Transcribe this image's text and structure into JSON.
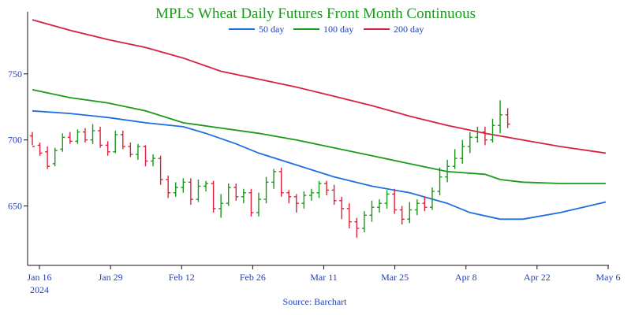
{
  "chart_data": {
    "type": "line",
    "title": "MPLS Wheat Daily Futures Front Month Continuous",
    "source": "Source: Barchart",
    "x_ticks": [
      "Jan 16",
      "Jan 29",
      "Feb 12",
      "Feb 26",
      "Mar 11",
      "Mar 25",
      "Apr 8",
      "Apr 22",
      "May 6"
    ],
    "x_year": "2024",
    "y_ticks": [
      "650",
      "700",
      "750"
    ],
    "ylim": [
      605,
      797
    ],
    "legend_position": "top",
    "grid": false,
    "colors": {
      "up": "#1a9a1a",
      "down": "#e0203a",
      "ma50": "#1c6fe0",
      "ma100": "#1a9a1a",
      "ma200": "#d62040",
      "axis": "#111111",
      "text": "#1f3fbf",
      "title": "#1a9a1a"
    },
    "ma_series": [
      {
        "name": "50 day",
        "color": "#1c6fe0",
        "points": [
          [
            0,
            722
          ],
          [
            5,
            720
          ],
          [
            10,
            717
          ],
          [
            15,
            713
          ],
          [
            20,
            710
          ],
          [
            23,
            705
          ],
          [
            27,
            697
          ],
          [
            30,
            690
          ],
          [
            35,
            681
          ],
          [
            40,
            672
          ],
          [
            45,
            665
          ],
          [
            50,
            660
          ],
          [
            55,
            652
          ],
          [
            58,
            645
          ],
          [
            62,
            640
          ],
          [
            65,
            640
          ],
          [
            70,
            645
          ],
          [
            76,
            653
          ]
        ]
      },
      {
        "name": "100 day",
        "color": "#1a9a1a",
        "points": [
          [
            0,
            738
          ],
          [
            5,
            732
          ],
          [
            10,
            728
          ],
          [
            15,
            722
          ],
          [
            20,
            713
          ],
          [
            25,
            709
          ],
          [
            30,
            705
          ],
          [
            35,
            700
          ],
          [
            40,
            694
          ],
          [
            45,
            688
          ],
          [
            50,
            682
          ],
          [
            55,
            676
          ],
          [
            60,
            674
          ],
          [
            62,
            670
          ],
          [
            65,
            668
          ],
          [
            70,
            667
          ],
          [
            76,
            667
          ]
        ]
      },
      {
        "name": "200 day",
        "color": "#d62040",
        "points": [
          [
            0,
            791
          ],
          [
            5,
            783
          ],
          [
            10,
            776
          ],
          [
            15,
            770
          ],
          [
            20,
            762
          ],
          [
            25,
            752
          ],
          [
            30,
            746
          ],
          [
            35,
            740
          ],
          [
            40,
            733
          ],
          [
            45,
            726
          ],
          [
            50,
            718
          ],
          [
            55,
            711
          ],
          [
            60,
            705
          ],
          [
            65,
            700
          ],
          [
            70,
            695
          ],
          [
            76,
            690
          ]
        ]
      }
    ],
    "bars": [
      [
        0,
        703,
        695,
        706,
        696
      ],
      [
        1,
        696,
        690,
        698,
        688
      ],
      [
        2,
        691,
        680,
        695,
        678
      ],
      [
        3,
        682,
        692,
        694,
        680
      ],
      [
        4,
        693,
        702,
        705,
        691
      ],
      [
        5,
        702,
        699,
        706,
        697
      ],
      [
        6,
        699,
        706,
        708,
        697
      ],
      [
        7,
        706,
        700,
        709,
        698
      ],
      [
        8,
        700,
        707,
        712,
        697
      ],
      [
        9,
        707,
        696,
        710,
        694
      ],
      [
        10,
        696,
        691,
        699,
        688
      ],
      [
        11,
        691,
        704,
        707,
        690
      ],
      [
        12,
        704,
        695,
        707,
        693
      ],
      [
        13,
        695,
        689,
        698,
        687
      ],
      [
        14,
        689,
        695,
        697,
        685
      ],
      [
        15,
        695,
        684,
        696,
        680
      ],
      [
        16,
        684,
        686,
        689,
        680
      ],
      [
        17,
        686,
        670,
        688,
        666
      ],
      [
        18,
        670,
        660,
        673,
        656
      ],
      [
        19,
        660,
        664,
        668,
        657
      ],
      [
        20,
        664,
        668,
        671,
        660
      ],
      [
        21,
        668,
        655,
        671,
        651
      ],
      [
        22,
        655,
        665,
        670,
        653
      ],
      [
        23,
        665,
        667,
        669,
        661
      ],
      [
        24,
        667,
        648,
        669,
        645
      ],
      [
        25,
        648,
        652,
        659,
        641
      ],
      [
        26,
        652,
        664,
        667,
        650
      ],
      [
        27,
        664,
        657,
        667,
        654
      ],
      [
        28,
        657,
        660,
        663,
        652
      ],
      [
        29,
        660,
        645,
        663,
        642
      ],
      [
        30,
        645,
        655,
        660,
        642
      ],
      [
        31,
        655,
        668,
        672,
        652
      ],
      [
        32,
        668,
        676,
        678,
        663
      ],
      [
        33,
        676,
        660,
        679,
        657
      ],
      [
        34,
        660,
        657,
        662,
        652
      ],
      [
        35,
        657,
        652,
        659,
        645
      ],
      [
        36,
        652,
        658,
        661,
        648
      ],
      [
        37,
        658,
        660,
        663,
        654
      ],
      [
        38,
        660,
        667,
        669,
        656
      ],
      [
        39,
        667,
        662,
        669,
        658
      ],
      [
        40,
        662,
        654,
        666,
        651
      ],
      [
        41,
        654,
        648,
        657,
        640
      ],
      [
        42,
        648,
        638,
        652,
        633
      ],
      [
        43,
        638,
        633,
        641,
        626
      ],
      [
        44,
        633,
        643,
        646,
        630
      ],
      [
        45,
        643,
        649,
        654,
        638
      ],
      [
        46,
        649,
        652,
        655,
        645
      ],
      [
        47,
        652,
        659,
        662,
        648
      ],
      [
        48,
        659,
        647,
        663,
        644
      ],
      [
        49,
        647,
        640,
        650,
        636
      ],
      [
        50,
        640,
        647,
        653,
        637
      ],
      [
        51,
        647,
        652,
        655,
        643
      ],
      [
        52,
        652,
        649,
        657,
        646
      ],
      [
        53,
        649,
        661,
        664,
        647
      ],
      [
        54,
        661,
        672,
        679,
        658
      ],
      [
        55,
        672,
        680,
        685,
        668
      ],
      [
        56,
        680,
        686,
        693,
        678
      ],
      [
        57,
        686,
        695,
        700,
        682
      ],
      [
        58,
        695,
        702,
        706,
        690
      ],
      [
        59,
        702,
        706,
        710,
        698
      ],
      [
        60,
        706,
        700,
        710,
        696
      ],
      [
        61,
        700,
        711,
        716,
        698
      ],
      [
        62,
        711,
        719,
        730,
        705
      ],
      [
        63,
        719,
        712,
        724,
        709
      ]
    ]
  }
}
